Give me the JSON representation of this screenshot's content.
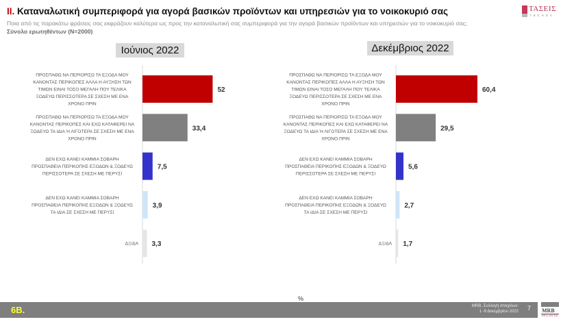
{
  "header": {
    "title_number": "II.",
    "title_text": "Καταναλωτική συμπεριφορά για αγορά βασικών προϊόντων και υπηρεσιών για το νοικοκυριό σας",
    "question": "Ποια από τις παρακάτω φράσεις σας εκφράζουν καλύτερα ως προς την καταναλωτική σας συμπεριφορά για την αγορά βασικών προϊόντων και υπηρεσιών για το νοικοκυριό σας;",
    "base": "Σύνολο ερωτηθέντων (Ν=2000)",
    "logo_name": "ΤΑΣΕΙΣ",
    "logo_sub": "TRENDS"
  },
  "chart_data": [
    {
      "type": "bar",
      "orientation": "horizontal",
      "title": "Ιούνιος 2022",
      "categories": [
        "ΠΡΟΣΠΑΘΩ ΝΑ ΠΕΡΙΟΡΙΣΩ ΤΑ ΕΞΟΔΑ ΜΟΥ ΚΑΝΟΝΤΑΣ ΠΕΡΙΚΟΠΕΣ ΑΛΛΑ Η ΑΥΞΗΣΗ ΤΩΝ ΤΙΜΩΝ ΕΙΝΑΙ ΤΟΣΟ ΜΕΓΑΛΗ ΠΟΥ ΤΕΛΙΚΑ ΞΟΔΕΥΩ ΠΕΡΙΣΣΟΤΕΡΑ ΣΕ ΣΧΕΣΗ ΜΕ ΕΝΑ ΧΡΟΝΟ ΠΡΙΝ",
        "ΠΡΟΣΠΑΘΩ ΝΑ ΠΕΡΙΟΡΙΣΩ ΤΑ ΕΞΟΔΑ ΜΟΥ ΚΑΝΟΝΤΑΣ ΠΕΡΙΚΟΠΕΣ ΚΑΙ ΕΧΩ ΚΑΤΑΦΕΡΕΙ ΝΑ ΞΟΔΕΥΩ ΤΑ ΙΔΙΑ Ή ΛΙΓΟΤΕΡΑ ΣΕ ΣΧΕΣΗ ΜΕ ΕΝΑ ΧΡΟΝΟ ΠΡΙΝ",
        "ΔΕΝ ΕΧΩ ΚΑΝΕΙ ΚΑΜΜΙΑ ΣΟΒΑΡΗ ΠΡΟΣΠΑΘΕΙΑ ΠΕΡΙΚΟΠΗΣ ΕΞΟΔΩΝ & ΞΟΔΕΥΩ ΠΕΡΙΣΣΟΤΕΡΑ ΣΕ ΣΧΕΣΗ ΜΕ ΠΕΡΥΣΙ",
        "ΔΕΝ ΕΧΩ ΚΑΝΕΙ ΚΑΜΜΙΑ ΣΟΒΑΡΗ ΠΡΟΣΠΑΘΕΙΑ ΠΕΡΙΚΟΠΗΣ ΕΞΟΔΩΝ & ΞΟΔΕΥΩ ΤΑ ΙΔΙΑ ΣΕ ΣΧΕΣΗ ΜΕ ΠΕΡΥΣΙ",
        "ΔΞ/ΔΑ"
      ],
      "label_lines": [
        [
          "ΠΡΟΣΠΑΘΩ ΝΑ ΠΕΡΙΟΡΙΣΩ ΤΑ ΕΞΟΔΑ ΜΟΥ",
          "ΚΑΝΟΝΤΑΣ ΠΕΡΙΚΟΠΕΣ ΑΛΛΑ Η ΑΥΞΗΣΗ ΤΩΝ",
          "ΤΙΜΩΝ ΕΙΝΑΙ ΤΟΣΟ ΜΕΓΑΛΗ ΠΟΥ ΤΕΛΙΚΑ",
          "ΞΟΔΕΥΩ ΠΕΡΙΣΣΟΤΕΡΑ ΣΕ ΣΧΕΣΗ ΜΕ ΕΝΑ",
          "ΧΡΟΝΟ ΠΡΙΝ"
        ],
        [
          "ΠΡΟΣΠΑΘΩ ΝΑ ΠΕΡΙΟΡΙΣΩ ΤΑ ΕΞΟΔΑ ΜΟΥ",
          "ΚΑΝΟΝΤΑΣ ΠΕΡΙΚΟΠΕΣ ΚΑΙ ΕΧΩ ΚΑΤΑΦΕΡΕΙ ΝΑ",
          "ΞΟΔΕΥΩ ΤΑ ΙΔΙΑ Ή ΛΙΓΟΤΕΡΑ ΣΕ ΣΧΕΣΗ ΜΕ ΕΝΑ",
          "ΧΡΟΝΟ ΠΡΙΝ"
        ],
        [
          "ΔΕΝ ΕΧΩ ΚΑΝΕΙ ΚΑΜΜΙΑ ΣΟΒΑΡΗ",
          "ΠΡΟΣΠΑΘΕΙΑ ΠΕΡΙΚΟΠΗΣ ΕΞΟΔΩΝ & ΞΟΔΕΥΩ",
          "ΠΕΡΙΣΣΟΤΕΡΑ ΣΕ ΣΧΕΣΗ ΜΕ ΠΕΡΥΣΙ"
        ],
        [
          "ΔΕΝ ΕΧΩ ΚΑΝΕΙ ΚΑΜΜΙΑ ΣΟΒΑΡΗ",
          "ΠΡΟΣΠΑΘΕΙΑ ΠΕΡΙΚΟΠΗΣ ΕΞΟΔΩΝ & ΞΟΔΕΥΩ",
          "ΤΑ ΙΔΙΑ ΣΕ ΣΧΕΣΗ ΜΕ ΠΕΡΥΣΙ"
        ],
        [
          "ΔΞ/ΔΑ"
        ]
      ],
      "values": [
        52,
        33.4,
        7.5,
        3.9,
        3.3
      ],
      "value_labels": [
        "52",
        "33,4",
        "7,5",
        "3,9",
        "3,3"
      ],
      "colors": [
        "#c00000",
        "#808080",
        "#3333cc",
        "#cfe5f8",
        "#e6e6e6"
      ],
      "unit": "%",
      "xlim": [
        0,
        100
      ]
    },
    {
      "type": "bar",
      "orientation": "horizontal",
      "title": "Δεκέμβριος 2022",
      "categories": [
        "ΠΡΟΣΠΑΘΩ ΝΑ ΠΕΡΙΟΡΙΣΩ ΤΑ ΕΞΟΔΑ ΜΟΥ ΚΑΝΟΝΤΑΣ ΠΕΡΙΚΟΠΕΣ ΑΛΛΑ Η ΑΥΞΗΣΗ ΤΩΝ ΤΙΜΩΝ ΕΙΝΑΙ ΤΟΣΟ ΜΕΓΑΛΗ ΠΟΥ ΤΕΛΙΚΑ ΞΟΔΕΥΩ ΠΕΡΙΣΣΟΤΕΡΑ ΣΕ ΣΧΕΣΗ ΜΕ ΕΝΑ ΧΡΟΝΟ ΠΡΙΝ",
        "ΠΡΟΣΠΑΘΩ ΝΑ ΠΕΡΙΟΡΙΣΩ ΤΑ ΕΞΟΔΑ ΜΟΥ ΚΑΝΟΝΤΑΣ ΠΕΡΙΚΟΠΕΣ ΚΑΙ ΕΧΩ ΚΑΤΑΦΕΡΕΙ ΝΑ ΞΟΔΕΥΩ ΤΑ ΙΔΙΑ Ή ΛΙΓΟΤΕΡΑ ΣΕ ΣΧΕΣΗ ΜΕ ΕΝΑ ΧΡΟΝΟ ΠΡΙΝ",
        "ΔΕΝ ΕΧΩ ΚΑΝΕΙ ΚΑΜΜΙΑ ΣΟΒΑΡΗ ΠΡΟΣΠΑΘΕΙΑ ΠΕΡΙΚΟΠΗΣ ΕΞΟΔΩΝ & ΞΟΔΕΥΩ ΠΕΡΙΣΣΟΤΕΡΑ ΣΕ ΣΧΕΣΗ ΜΕ ΠΕΡΥΣΙ",
        "ΔΕΝ ΕΧΩ ΚΑΝΕΙ ΚΑΜΜΙΑ ΣΟΒΑΡΗ ΠΡΟΣΠΑΘΕΙΑ ΠΕΡΙΚΟΠΗΣ ΕΞΟΔΩΝ & ΞΟΔΕΥΩ ΤΑ ΙΔΙΑ ΣΕ ΣΧΕΣΗ ΜΕ ΠΕΡΥΣΙ",
        "ΔΞ/ΔΑ"
      ],
      "label_lines": [
        [
          "ΠΡΟΣΠΑΘΩ ΝΑ ΠΕΡΙΟΡΙΣΩ ΤΑ ΕΞΟΔΑ ΜΟΥ",
          "ΚΑΝΟΝΤΑΣ ΠΕΡΙΚΟΠΕΣ ΑΛΛΑ Η ΑΥΞΗΣΗ ΤΩΝ",
          "ΤΙΜΩΝ ΕΙΝΑΙ ΤΟΣΟ ΜΕΓΑΛΗ ΠΟΥ ΤΕΛΙΚΑ",
          "ΞΟΔΕΥΩ ΠΕΡΙΣΣΟΤΕΡΑ ΣΕ ΣΧΕΣΗ ΜΕ ΕΝΑ",
          "ΧΡΟΝΟ ΠΡΙΝ"
        ],
        [
          "ΠΡΟΣΠΑΘΩ ΝΑ ΠΕΡΙΟΡΙΣΩ ΤΑ ΕΞΟΔΑ ΜΟΥ",
          "ΚΑΝΟΝΤΑΣ ΠΕΡΙΚΟΠΕΣ ΚΑΙ ΕΧΩ ΚΑΤΑΦΕΡΕΙ ΝΑ",
          "ΞΟΔΕΥΩ ΤΑ ΙΔΙΑ Ή ΛΙΓΟΤΕΡΑ ΣΕ ΣΧΕΣΗ ΜΕ ΕΝΑ",
          "ΧΡΟΝΟ ΠΡΙΝ"
        ],
        [
          "ΔΕΝ ΕΧΩ ΚΑΝΕΙ ΚΑΜΜΙΑ ΣΟΒΑΡΗ",
          "ΠΡΟΣΠΑΘΕΙΑ ΠΕΡΙΚΟΠΗΣ ΕΞΟΔΩΝ & ΞΟΔΕΥΩ",
          "ΠΕΡΙΣΣΟΤΕΡΑ ΣΕ ΣΧΕΣΗ ΜΕ ΠΕΡΥΣΙ"
        ],
        [
          "ΔΕΝ ΕΧΩ ΚΑΝΕΙ ΚΑΜΜΙΑ ΣΟΒΑΡΗ",
          "ΠΡΟΣΠΑΘΕΙΑ ΠΕΡΙΚΟΠΗΣ ΕΞΟΔΩΝ & ΞΟΔΕΥΩ",
          "ΤΑ ΙΔΙΑ ΣΕ ΣΧΕΣΗ ΜΕ ΠΕΡΥΣΙ"
        ],
        [
          "ΔΞ/ΔΑ"
        ]
      ],
      "values": [
        60.4,
        29.5,
        5.6,
        2.7,
        1.7
      ],
      "value_labels": [
        "60,4",
        "29,5",
        "5,6",
        "2,7",
        "1,7"
      ],
      "colors": [
        "#c00000",
        "#808080",
        "#3333cc",
        "#cfe5f8",
        "#e6e6e6"
      ],
      "unit": "%",
      "xlim": [
        0,
        100
      ]
    }
  ],
  "axis_unit_label": "%",
  "footer": {
    "code": "6B.",
    "source_line1": "MRB, Συλλογή στοιχείων:",
    "source_line2": "1 -9 Δεκεμβρίου 2022",
    "page_number": "7",
    "brand": "MRB",
    "brand_sub": "HELLAS SA"
  }
}
